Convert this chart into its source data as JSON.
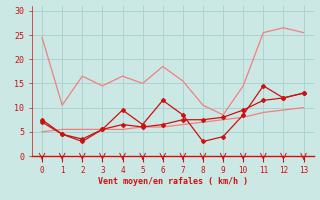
{
  "title": "",
  "xlabel": "Vent moyen/en rafales ( km/h )",
  "ylabel": "",
  "bg_color": "#cce8e4",
  "grid_color": "#aad4d0",
  "x": [
    0,
    1,
    2,
    3,
    4,
    5,
    6,
    7,
    8,
    9,
    10,
    11,
    12,
    13
  ],
  "line1": [
    24.5,
    10.5,
    16.5,
    14.5,
    16.5,
    15.0,
    18.5,
    15.5,
    10.5,
    8.5,
    14.5,
    25.5,
    26.5,
    25.5
  ],
  "line2": [
    7.5,
    4.5,
    3.0,
    5.5,
    9.5,
    6.5,
    11.5,
    8.5,
    3.0,
    4.0,
    8.5,
    14.5,
    12.0,
    13.0
  ],
  "line3": [
    7.0,
    4.5,
    3.5,
    5.5,
    6.5,
    6.0,
    6.5,
    7.5,
    7.5,
    8.0,
    9.5,
    11.5,
    12.0,
    13.0
  ],
  "line4": [
    5.0,
    5.5,
    5.5,
    5.5,
    5.5,
    6.0,
    6.0,
    6.5,
    7.0,
    7.5,
    8.0,
    9.0,
    9.5,
    10.0
  ],
  "line1_color": "#f08080",
  "line2_color": "#cc1111",
  "line3_color": "#cc1111",
  "line4_color": "#f08080",
  "xlim": [
    -0.5,
    13.5
  ],
  "ylim": [
    0,
    31
  ],
  "yticks": [
    0,
    5,
    10,
    15,
    20,
    25,
    30
  ],
  "xticks": [
    0,
    1,
    2,
    3,
    4,
    5,
    6,
    7,
    8,
    9,
    10,
    11,
    12,
    13
  ]
}
